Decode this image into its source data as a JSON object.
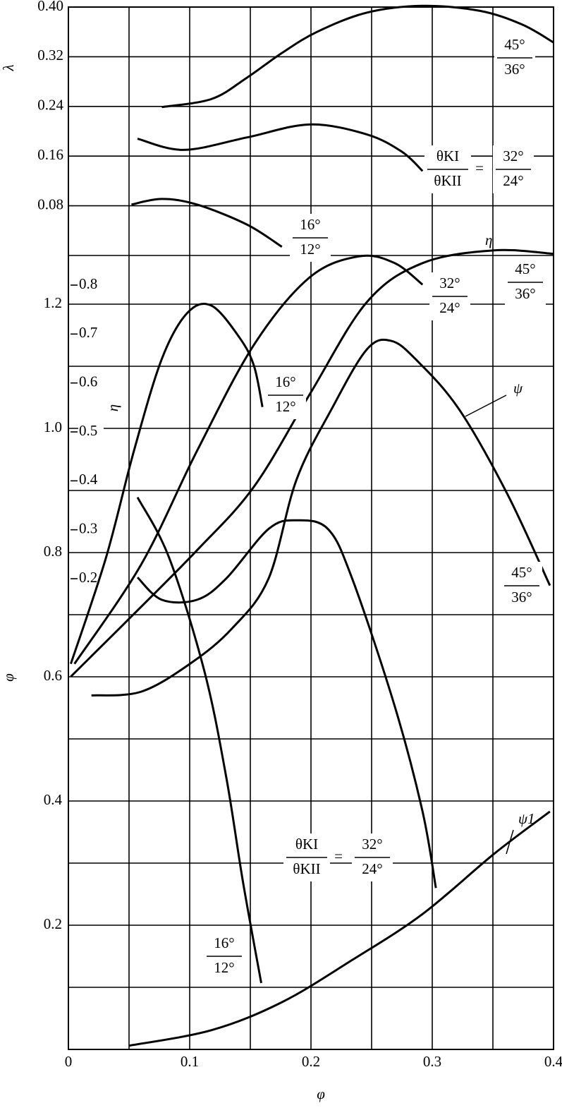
{
  "chart_data": {
    "type": "line",
    "color": "#000000",
    "xlabel": "φ",
    "ylabel": "φ",
    "y2label": "λ",
    "y3label": "η",
    "xlim": [
      0,
      0.4
    ],
    "xticks": [
      0,
      0.1,
      0.2,
      0.3,
      0.4
    ],
    "xminor": [
      0.05,
      0.15,
      0.25,
      0.35
    ],
    "ylim": [
      0,
      1.2
    ],
    "yticks": [
      0.2,
      0.4,
      0.6,
      0.8,
      {
        "value": 1,
        "label": "1.0"
      },
      1.2
    ],
    "yminor": [
      0.1,
      0.3,
      0.5,
      0.7,
      0.9,
      1.1
    ],
    "y2lim": [
      0,
      0.4
    ],
    "y2ticks": [
      {
        "value": 0.4,
        "label": "0.40"
      },
      0.32,
      0.24,
      0.16,
      0.08
    ],
    "y2minor": [
      0
    ],
    "y3lim": [
      0.2,
      0.8
    ],
    "y3ticks": [
      0.8,
      0.7,
      0.6,
      0.5,
      0.4,
      0.3,
      0.2
    ],
    "grid": true,
    "series": [
      {
        "axis": "y2",
        "x": [
          0.077,
          0.118,
          0.147,
          0.176,
          0.205,
          0.246,
          0.292,
          0.339,
          0.374,
          0.4
        ],
        "values": [
          0.239,
          0.252,
          0.286,
          0.326,
          0.36,
          0.391,
          0.402,
          0.394,
          0.372,
          0.343
        ]
      },
      {
        "axis": "y2",
        "x": [
          0.057,
          0.095,
          0.147,
          0.199,
          0.246,
          0.275,
          0.292
        ],
        "values": [
          0.188,
          0.17,
          0.19,
          0.211,
          0.195,
          0.167,
          0.136
        ]
      },
      {
        "axis": "y2",
        "x": [
          0.052,
          0.077,
          0.106,
          0.147,
          0.176
        ],
        "values": [
          0.082,
          0.091,
          0.082,
          0.05,
          0.014
        ]
      },
      {
        "axis": "y3",
        "x": [
          0.002,
          0.031,
          0.054,
          0.077,
          0.098,
          0.118,
          0.141,
          0.153,
          0.16
        ],
        "values": [
          0.026,
          0.243,
          0.461,
          0.649,
          0.743,
          0.758,
          0.693,
          0.635,
          0.551
        ]
      },
      {
        "axis": "y3",
        "x": [
          0.005,
          0.06,
          0.106,
          0.153,
          0.199,
          0.24,
          0.269,
          0.292
        ],
        "values": [
          0.026,
          0.229,
          0.461,
          0.678,
          0.816,
          0.859,
          0.845,
          0.801
        ]
      },
      {
        "axis": "y3",
        "x": [
          0.002,
          0.048,
          0.106,
          0.153,
          0.199,
          0.246,
          0.292,
          0.351,
          0.4
        ],
        "values": [
          0.0,
          0.113,
          0.258,
          0.388,
          0.577,
          0.765,
          0.845,
          0.871,
          0.864
        ]
      },
      {
        "axis": "y",
        "x": [
          0.057,
          0.083,
          0.112,
          0.13,
          0.144,
          0.159
        ],
        "values": [
          0.889,
          0.792,
          0.61,
          0.44,
          0.269,
          0.107
        ]
      },
      {
        "axis": "y",
        "x": [
          0.057,
          0.077,
          0.106,
          0.13,
          0.165,
          0.188,
          0.214,
          0.234,
          0.269,
          0.292,
          0.303
        ],
        "values": [
          0.76,
          0.724,
          0.724,
          0.758,
          0.838,
          0.852,
          0.838,
          0.758,
          0.553,
          0.383,
          0.26
        ]
      },
      {
        "axis": "y",
        "x": [
          0.019,
          0.06,
          0.101,
          0.135,
          0.165,
          0.188,
          0.217,
          0.246,
          0.266,
          0.287,
          0.322,
          0.362,
          0.397
        ],
        "values": [
          0.57,
          0.576,
          0.622,
          0.678,
          0.758,
          0.917,
          1.031,
          1.127,
          1.141,
          1.11,
          1.031,
          0.894,
          0.747
        ]
      },
      {
        "axis": "y",
        "x": [
          0.05,
          0.118,
          0.176,
          0.234,
          0.292,
          0.351,
          0.397
        ],
        "values": [
          0.006,
          0.031,
          0.076,
          0.144,
          0.218,
          0.315,
          0.383
        ]
      }
    ],
    "annotations": [
      {
        "num": "45°",
        "den": "36°"
      },
      {
        "lhs_num": "θKI",
        "lhs_den": "θKII",
        "eq": "=",
        "num": "32°",
        "den": "24°"
      },
      {
        "num": "16°",
        "den": "12°"
      },
      {
        "num": "32°",
        "den": "24°"
      },
      {
        "num": "45°",
        "den": "36°"
      },
      {
        "num": "16°",
        "den": "12°"
      },
      {
        "num": "45°",
        "den": "36°"
      },
      {
        "lhs_num": "θKI",
        "lhs_den": "θKII",
        "eq": "=",
        "num": "32°",
        "den": "24°"
      },
      {
        "num": "16°",
        "den": "12°"
      }
    ],
    "curve_labels": [
      "η",
      "ψ",
      "ψ1"
    ]
  }
}
